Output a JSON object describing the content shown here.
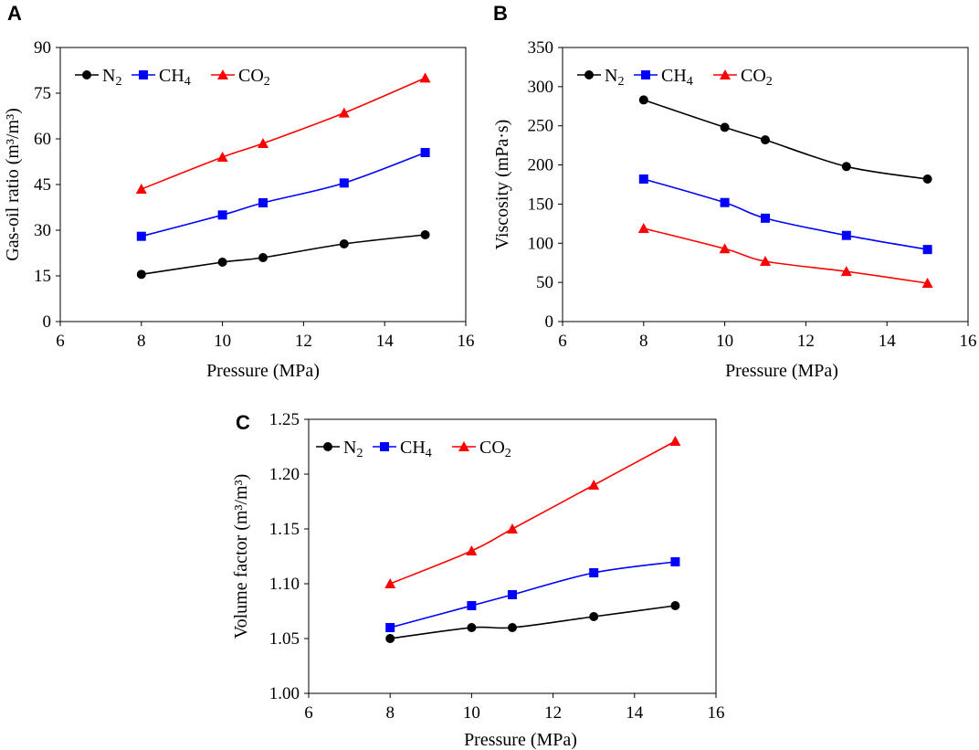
{
  "chart_data": [
    {
      "panel": "A",
      "type": "line",
      "xlabel": "Pressure (MPa)",
      "ylabel": "Gas-oil ratio (m³/m³)",
      "xlim": [
        6,
        16
      ],
      "ylim": [
        0,
        90
      ],
      "xticks": [
        6,
        8,
        10,
        12,
        14,
        16
      ],
      "yticks": [
        0,
        15,
        30,
        45,
        60,
        75,
        90
      ],
      "x": [
        8,
        10,
        11,
        13,
        15
      ],
      "legend_position": "top-left",
      "series": [
        {
          "name": "N",
          "sub": "2",
          "color": "#000000",
          "marker": "circle",
          "values": [
            15.5,
            19.5,
            21,
            25.5,
            28.5
          ]
        },
        {
          "name": "CH",
          "sub": "4",
          "color": "#0000ff",
          "marker": "square",
          "values": [
            28,
            35,
            39,
            45.5,
            55.5
          ]
        },
        {
          "name": "CO",
          "sub": "2",
          "color": "#ff0000",
          "marker": "triangle",
          "values": [
            43.5,
            54,
            58.5,
            68.5,
            80
          ]
        }
      ]
    },
    {
      "panel": "B",
      "type": "line",
      "xlabel": "Pressure (MPa)",
      "ylabel": "Viscosity (mPa·s)",
      "xlim": [
        6,
        16
      ],
      "ylim": [
        0,
        350
      ],
      "xticks": [
        6,
        8,
        10,
        12,
        14,
        16
      ],
      "yticks": [
        0,
        50,
        100,
        150,
        200,
        250,
        300,
        350
      ],
      "x": [
        8,
        10,
        11,
        13,
        15
      ],
      "legend_position": "top-left",
      "series": [
        {
          "name": "N",
          "sub": "2",
          "color": "#000000",
          "marker": "circle",
          "values": [
            283,
            248,
            232,
            198,
            182
          ]
        },
        {
          "name": "CH",
          "sub": "4",
          "color": "#0000ff",
          "marker": "square",
          "values": [
            182,
            152,
            132,
            110,
            92
          ]
        },
        {
          "name": "CO",
          "sub": "2",
          "color": "#ff0000",
          "marker": "triangle",
          "values": [
            119,
            93,
            77,
            64,
            49
          ]
        }
      ]
    },
    {
      "panel": "C",
      "type": "line",
      "xlabel": "Pressure (MPa)",
      "ylabel": "Volume factor (m³/m³)",
      "xlim": [
        6,
        16
      ],
      "ylim": [
        1.0,
        1.25
      ],
      "xticks": [
        6,
        8,
        10,
        12,
        14,
        16
      ],
      "yticks": [
        1.0,
        1.05,
        1.1,
        1.15,
        1.2,
        1.25
      ],
      "ytick_decimals": 2,
      "x": [
        8,
        10,
        11,
        13,
        15
      ],
      "legend_position": "top-left",
      "series": [
        {
          "name": "N",
          "sub": "2",
          "color": "#000000",
          "marker": "circle",
          "values": [
            1.05,
            1.06,
            1.06,
            1.07,
            1.08
          ]
        },
        {
          "name": "CH",
          "sub": "4",
          "color": "#0000ff",
          "marker": "square",
          "values": [
            1.06,
            1.08,
            1.09,
            1.11,
            1.12
          ]
        },
        {
          "name": "CO",
          "sub": "2",
          "color": "#ff0000",
          "marker": "triangle",
          "values": [
            1.1,
            1.13,
            1.15,
            1.19,
            1.23
          ]
        }
      ]
    }
  ]
}
